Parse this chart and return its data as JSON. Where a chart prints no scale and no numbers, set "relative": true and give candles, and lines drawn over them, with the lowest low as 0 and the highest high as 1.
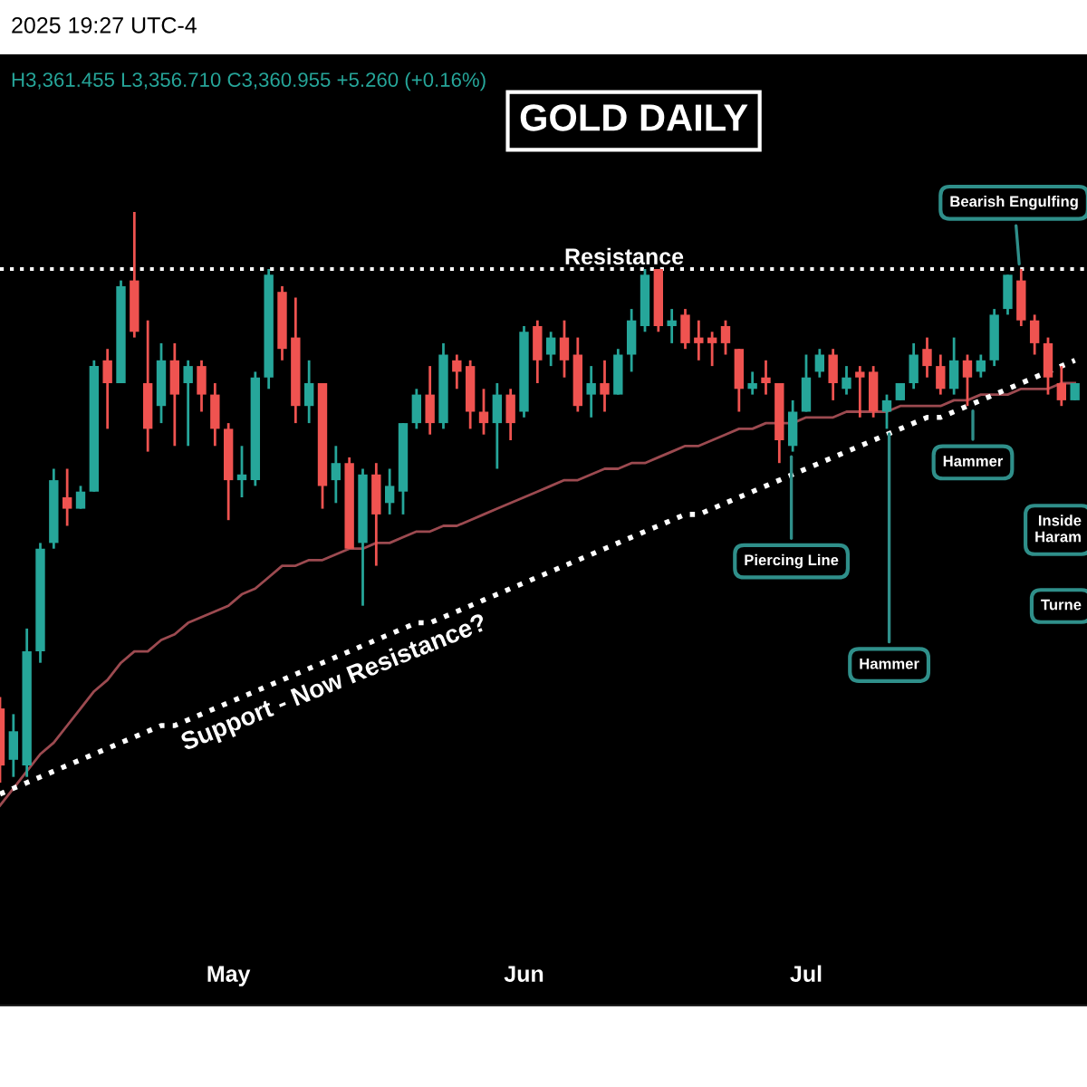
{
  "chart_data": {
    "type": "candlestick",
    "title": "GOLD DAILY",
    "relative": true,
    "tick_labels": "x",
    "categories": [
      null,
      null,
      null,
      null,
      null,
      null,
      null,
      null,
      null,
      null,
      null,
      null,
      null,
      null,
      null,
      null,
      null,
      "May",
      null,
      null,
      null,
      null,
      null,
      null,
      null,
      null,
      null,
      null,
      null,
      null,
      null,
      null,
      null,
      null,
      null,
      null,
      null,
      null,
      null,
      "Jun",
      null,
      null,
      null,
      null,
      null,
      null,
      null,
      null,
      null,
      null,
      null,
      null,
      null,
      null,
      null,
      null,
      null,
      null,
      null,
      null,
      "Jul",
      null,
      null,
      null,
      null,
      null,
      null,
      null,
      null,
      null,
      null,
      null,
      null,
      null,
      null,
      null,
      null,
      null,
      null,
      null,
      null
    ],
    "ohlc": [
      [
        0.13,
        0.15,
        0,
        0.03
      ],
      [
        0.04,
        0.12,
        0.01,
        0.09
      ],
      [
        0.03,
        0.27,
        0.01,
        0.23
      ],
      [
        0.23,
        0.42,
        0.21,
        0.41
      ],
      [
        0.42,
        0.55,
        0.41,
        0.53
      ],
      [
        0.5,
        0.55,
        0.45,
        0.48
      ],
      [
        0.48,
        0.52,
        0.48,
        0.51
      ],
      [
        0.51,
        0.74,
        0.51,
        0.73
      ],
      [
        0.74,
        0.76,
        0.62,
        0.7
      ],
      [
        0.7,
        0.88,
        0.7,
        0.87
      ],
      [
        0.88,
        1.0,
        0.78,
        0.79
      ],
      [
        0.7,
        0.81,
        0.58,
        0.62
      ],
      [
        0.66,
        0.77,
        0.63,
        0.74
      ],
      [
        0.74,
        0.77,
        0.59,
        0.68
      ],
      [
        0.7,
        0.74,
        0.59,
        0.73
      ],
      [
        0.73,
        0.74,
        0.65,
        0.68
      ],
      [
        0.68,
        0.7,
        0.59,
        0.62
      ],
      [
        0.62,
        0.63,
        0.46,
        0.53
      ],
      [
        0.53,
        0.59,
        0.5,
        0.54
      ],
      [
        0.53,
        0.72,
        0.52,
        0.71
      ],
      [
        0.71,
        0.9,
        0.69,
        0.89
      ],
      [
        0.86,
        0.87,
        0.74,
        0.76
      ],
      [
        0.78,
        0.85,
        0.63,
        0.66
      ],
      [
        0.66,
        0.74,
        0.63,
        0.7
      ],
      [
        0.7,
        0.7,
        0.48,
        0.52
      ],
      [
        0.53,
        0.59,
        0.49,
        0.56
      ],
      [
        0.56,
        0.57,
        0.41,
        0.41
      ],
      [
        0.42,
        0.55,
        0.31,
        0.54
      ],
      [
        0.54,
        0.56,
        0.38,
        0.47
      ],
      [
        0.49,
        0.55,
        0.47,
        0.52
      ],
      [
        0.51,
        0.63,
        0.47,
        0.63
      ],
      [
        0.63,
        0.69,
        0.62,
        0.68
      ],
      [
        0.68,
        0.73,
        0.61,
        0.63
      ],
      [
        0.63,
        0.77,
        0.62,
        0.75
      ],
      [
        0.74,
        0.75,
        0.69,
        0.72
      ],
      [
        0.73,
        0.74,
        0.62,
        0.65
      ],
      [
        0.65,
        0.69,
        0.61,
        0.63
      ],
      [
        0.63,
        0.7,
        0.55,
        0.68
      ],
      [
        0.68,
        0.69,
        0.6,
        0.63
      ],
      [
        0.65,
        0.8,
        0.64,
        0.79
      ],
      [
        0.8,
        0.81,
        0.7,
        0.74
      ],
      [
        0.75,
        0.79,
        0.73,
        0.78
      ],
      [
        0.78,
        0.81,
        0.71,
        0.74
      ],
      [
        0.75,
        0.78,
        0.65,
        0.66
      ],
      [
        0.68,
        0.73,
        0.64,
        0.7
      ],
      [
        0.7,
        0.74,
        0.65,
        0.68
      ],
      [
        0.68,
        0.76,
        0.68,
        0.75
      ],
      [
        0.75,
        0.83,
        0.72,
        0.81
      ],
      [
        0.8,
        0.9,
        0.79,
        0.89
      ],
      [
        0.9,
        0.9,
        0.79,
        0.8
      ],
      [
        0.8,
        0.83,
        0.77,
        0.81
      ],
      [
        0.82,
        0.83,
        0.76,
        0.77
      ],
      [
        0.78,
        0.81,
        0.74,
        0.77
      ],
      [
        0.78,
        0.79,
        0.73,
        0.77
      ],
      [
        0.8,
        0.81,
        0.75,
        0.77
      ],
      [
        0.76,
        0.76,
        0.65,
        0.69
      ],
      [
        0.69,
        0.72,
        0.68,
        0.7
      ],
      [
        0.71,
        0.74,
        0.68,
        0.7
      ],
      [
        0.7,
        0.7,
        0.56,
        0.6
      ],
      [
        0.59,
        0.67,
        0.58,
        0.65
      ],
      [
        0.65,
        0.75,
        0.65,
        0.71
      ],
      [
        0.72,
        0.76,
        0.71,
        0.75
      ],
      [
        0.75,
        0.76,
        0.67,
        0.7
      ],
      [
        0.69,
        0.73,
        0.68,
        0.71
      ],
      [
        0.72,
        0.73,
        0.64,
        0.71
      ],
      [
        0.72,
        0.73,
        0.64,
        0.65
      ],
      [
        0.65,
        0.68,
        0.62,
        0.67
      ],
      [
        0.67,
        0.7,
        0.67,
        0.7
      ],
      [
        0.7,
        0.77,
        0.69,
        0.75
      ],
      [
        0.76,
        0.78,
        0.71,
        0.73
      ],
      [
        0.73,
        0.75,
        0.68,
        0.69
      ],
      [
        0.69,
        0.78,
        0.68,
        0.74
      ],
      [
        0.74,
        0.75,
        0.66,
        0.71
      ],
      [
        0.72,
        0.75,
        0.71,
        0.74
      ],
      [
        0.74,
        0.83,
        0.73,
        0.82
      ],
      [
        0.83,
        0.89,
        0.82,
        0.89
      ],
      [
        0.88,
        0.9,
        0.8,
        0.81
      ],
      [
        0.81,
        0.82,
        0.75,
        0.77
      ],
      [
        0.77,
        0.78,
        0.68,
        0.71
      ],
      [
        0.7,
        0.73,
        0.66,
        0.67
      ],
      [
        0.67,
        0.7,
        0.67,
        0.7
      ]
    ],
    "colors": [
      "#ef5350",
      "#26a69a",
      "#26a69a",
      "#26a69a",
      "#26a69a",
      "#ef5350",
      "#26a69a",
      "#26a69a",
      "#ef5350",
      "#26a69a",
      "#ef5350",
      "#ef5350",
      "#26a69a",
      "#ef5350",
      "#26a69a",
      "#ef5350",
      "#ef5350",
      "#ef5350",
      "#26a69a",
      "#26a69a",
      "#26a69a",
      "#ef5350",
      "#ef5350",
      "#26a69a",
      "#ef5350",
      "#26a69a",
      "#ef5350",
      "#26a69a",
      "#ef5350",
      "#26a69a",
      "#26a69a",
      "#26a69a",
      "#ef5350",
      "#26a69a",
      "#ef5350",
      "#ef5350",
      "#ef5350",
      "#26a69a",
      "#ef5350",
      "#26a69a",
      "#ef5350",
      "#26a69a",
      "#ef5350",
      "#ef5350",
      "#26a69a",
      "#ef5350",
      "#26a69a",
      "#26a69a",
      "#26a69a",
      "#ef5350",
      "#26a69a",
      "#ef5350",
      "#ef5350",
      "#ef5350",
      "#ef5350",
      "#ef5350",
      "#26a69a",
      "#ef5350",
      "#ef5350",
      "#26a69a",
      "#26a69a",
      "#26a69a",
      "#ef5350",
      "#26a69a",
      "#ef5350",
      "#ef5350",
      "#26a69a",
      "#26a69a",
      "#26a69a",
      "#ef5350",
      "#ef5350",
      "#26a69a",
      "#ef5350",
      "#26a69a",
      "#26a69a",
      "#26a69a",
      "#ef5350",
      "#ef5350",
      "#ef5350",
      "#ef5350",
      "#26a69a"
    ],
    "series": [
      {
        "type": "line",
        "color": "#9c4a50",
        "line_style": "solid",
        "values": [
          -0.04,
          -0.01,
          0.02,
          0.05,
          0.07,
          0.1,
          0.13,
          0.16,
          0.18,
          0.21,
          0.23,
          0.23,
          0.25,
          0.26,
          0.28,
          0.29,
          0.3,
          0.31,
          0.33,
          0.34,
          0.36,
          0.38,
          0.38,
          0.39,
          0.39,
          0.4,
          0.41,
          0.41,
          0.42,
          0.42,
          0.43,
          0.44,
          0.44,
          0.45,
          0.45,
          0.46,
          0.47,
          0.48,
          0.49,
          0.5,
          0.51,
          0.52,
          0.53,
          0.53,
          0.54,
          0.55,
          0.55,
          0.56,
          0.56,
          0.57,
          0.58,
          0.59,
          0.59,
          0.6,
          0.61,
          0.62,
          0.62,
          0.63,
          0.63,
          0.63,
          0.64,
          0.64,
          0.64,
          0.65,
          0.65,
          0.65,
          0.65,
          0.66,
          0.66,
          0.66,
          0.66,
          0.67,
          0.67,
          0.68,
          0.68,
          0.68,
          0.69,
          0.69,
          0.69,
          0.7,
          0.7
        ]
      },
      {
        "type": "line",
        "name": "Support - Now Resistance?",
        "color": "#ffffff",
        "line_style": "dotted",
        "values": [
          -0.02,
          -0.01,
          0.0,
          0.01,
          0.02,
          0.03,
          0.04,
          0.05,
          0.06,
          0.07,
          0.08,
          0.09,
          0.1,
          0.1,
          0.11,
          0.12,
          0.13,
          0.14,
          0.15,
          0.16,
          0.17,
          0.18,
          0.19,
          0.2,
          0.21,
          0.22,
          0.23,
          0.24,
          0.25,
          0.26,
          0.27,
          0.28,
          0.28,
          0.29,
          0.3,
          0.31,
          0.32,
          0.33,
          0.34,
          0.35,
          0.36,
          0.37,
          0.38,
          0.39,
          0.4,
          0.41,
          0.42,
          0.43,
          0.44,
          0.45,
          0.46,
          0.47,
          0.47,
          0.48,
          0.49,
          0.5,
          0.51,
          0.52,
          0.53,
          0.54,
          0.55,
          0.56,
          0.57,
          0.58,
          0.59,
          0.6,
          0.61,
          0.62,
          0.63,
          0.64,
          0.64,
          0.65,
          0.66,
          0.67,
          0.68,
          0.69,
          0.7,
          0.71,
          0.72,
          0.73,
          0.74
        ]
      }
    ],
    "ref_lines": [
      {
        "axis": "y",
        "value": 0.9,
        "label": "Resistance",
        "color": "#ffffff",
        "line_style": "dotted"
      }
    ],
    "annotations": [
      "2025 19:27 UTC-4",
      "H3,361.455 L3,356.710 C3,360.955 +5.260 (+0.16%)",
      {
        "text": "Bearish Engulfing",
        "y": 0.9
      },
      {
        "text": "Hammer",
        "y": 0.66
      },
      {
        "text": "Piercing Line",
        "y": 0.58
      },
      {
        "text": "Hammer",
        "y": 0.62
      },
      "Inside\nHaram",
      "Turne"
    ]
  }
}
